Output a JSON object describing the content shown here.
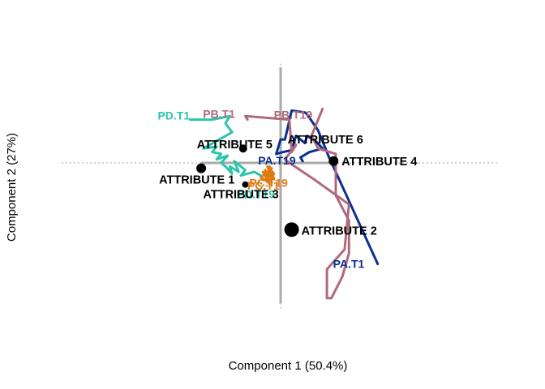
{
  "chart_data": {
    "type": "scatter",
    "xlabel": "Component 1 (50.4%)",
    "ylabel": "Component 2 (27%)",
    "xlim": [
      -1.0,
      1.0
    ],
    "ylim": [
      -0.8,
      0.8
    ],
    "grid": false,
    "reference_lines": {
      "x": 0,
      "y": 0,
      "style": "dotted"
    },
    "colors": {
      "PA": "#0a2f8f",
      "PB": "#b06a7c",
      "PC": "#e07b12",
      "PD": "#2ec4ad",
      "attribute": "#000000",
      "axis_bar": "#aaaaaa"
    },
    "attributes": [
      {
        "name": "ATTRIBUTE 1",
        "x": -0.36,
        "y": -0.03,
        "size": 6
      },
      {
        "name": "ATTRIBUTE 2",
        "x": 0.05,
        "y": -0.37,
        "size": 9
      },
      {
        "name": "ATTRIBUTE 3",
        "x": -0.16,
        "y": -0.12,
        "size": 4
      },
      {
        "name": "ATTRIBUTE 4",
        "x": 0.24,
        "y": 0.01,
        "size": 6
      },
      {
        "name": "ATTRIBUTE 5",
        "x": -0.17,
        "y": 0.08,
        "size": 5
      },
      {
        "name": "ATTRIBUTE 6",
        "x": 0.12,
        "y": 0.13,
        "size": 0
      }
    ],
    "trajectories": [
      {
        "name": "PA",
        "start_label": "PA.T1",
        "end_label": "PA.T19",
        "x": [
          0.44,
          0.25,
          0.22,
          0.19,
          0.17,
          0.12,
          0.11,
          0.05,
          0.02,
          0.0,
          -0.02,
          0.01,
          0.05,
          0.07,
          0.11,
          0.12,
          0.16,
          0.19,
          0.13,
          0.09,
          0.1
        ],
        "y": [
          -0.56,
          -0.05,
          0.03,
          0.12,
          0.18,
          0.27,
          0.28,
          0.29,
          0.13,
          0.13,
          0.05,
          0.06,
          0.07,
          0.15,
          0.11,
          0.15,
          0.12,
          0.08,
          0.06,
          0.03,
          0.01
        ]
      },
      {
        "name": "PB",
        "start_label": "PB.T1",
        "end_label": "PB.T19",
        "x": [
          -0.15,
          -0.16,
          0.04,
          0.05,
          0.07,
          0.02,
          0.04,
          0.15,
          0.31,
          0.29,
          0.21,
          0.21,
          0.23,
          0.28,
          0.31,
          0.31,
          0.25,
          0.25,
          0.17,
          0.14,
          0.19
        ],
        "y": [
          0.24,
          0.26,
          0.24,
          0.06,
          0.1,
          0.02,
          0.0,
          -0.09,
          -0.23,
          -0.48,
          -0.59,
          -0.75,
          -0.75,
          -0.63,
          -0.5,
          -0.32,
          -0.18,
          0.05,
          0.08,
          0.15,
          0.3
        ]
      },
      {
        "name": "PC",
        "start_label": "PC.T1",
        "end_label": "PC.T19",
        "x": [
          -0.07,
          -0.06,
          -0.05,
          -0.03,
          -0.06,
          -0.05,
          -0.07,
          -0.04,
          -0.09,
          -0.05,
          -0.08,
          -0.04,
          -0.06,
          -0.03,
          -0.05
        ],
        "y": [
          -0.04,
          -0.08,
          -0.02,
          -0.09,
          -0.05,
          -0.12,
          -0.07,
          -0.03,
          -0.08,
          -0.11,
          -0.05,
          -0.08,
          -0.02,
          -0.06,
          -0.1
        ]
      },
      {
        "name": "PD",
        "start_label": "PD.T1",
        "end_label": "PD.T19",
        "x": [
          -0.41,
          -0.31,
          -0.23,
          -0.25,
          -0.22,
          -0.35,
          -0.29,
          -0.31,
          -0.27,
          -0.29,
          -0.24,
          -0.27,
          -0.25,
          -0.22,
          -0.23,
          -0.19,
          -0.21,
          -0.16,
          -0.18,
          -0.12,
          -0.09
        ],
        "y": [
          0.24,
          0.24,
          0.26,
          0.22,
          0.17,
          0.08,
          0.09,
          0.06,
          0.05,
          0.02,
          0.04,
          0.0,
          -0.02,
          -0.06,
          -0.02,
          -0.05,
          0.01,
          -0.04,
          -0.07,
          -0.05,
          -0.07
        ]
      }
    ]
  }
}
